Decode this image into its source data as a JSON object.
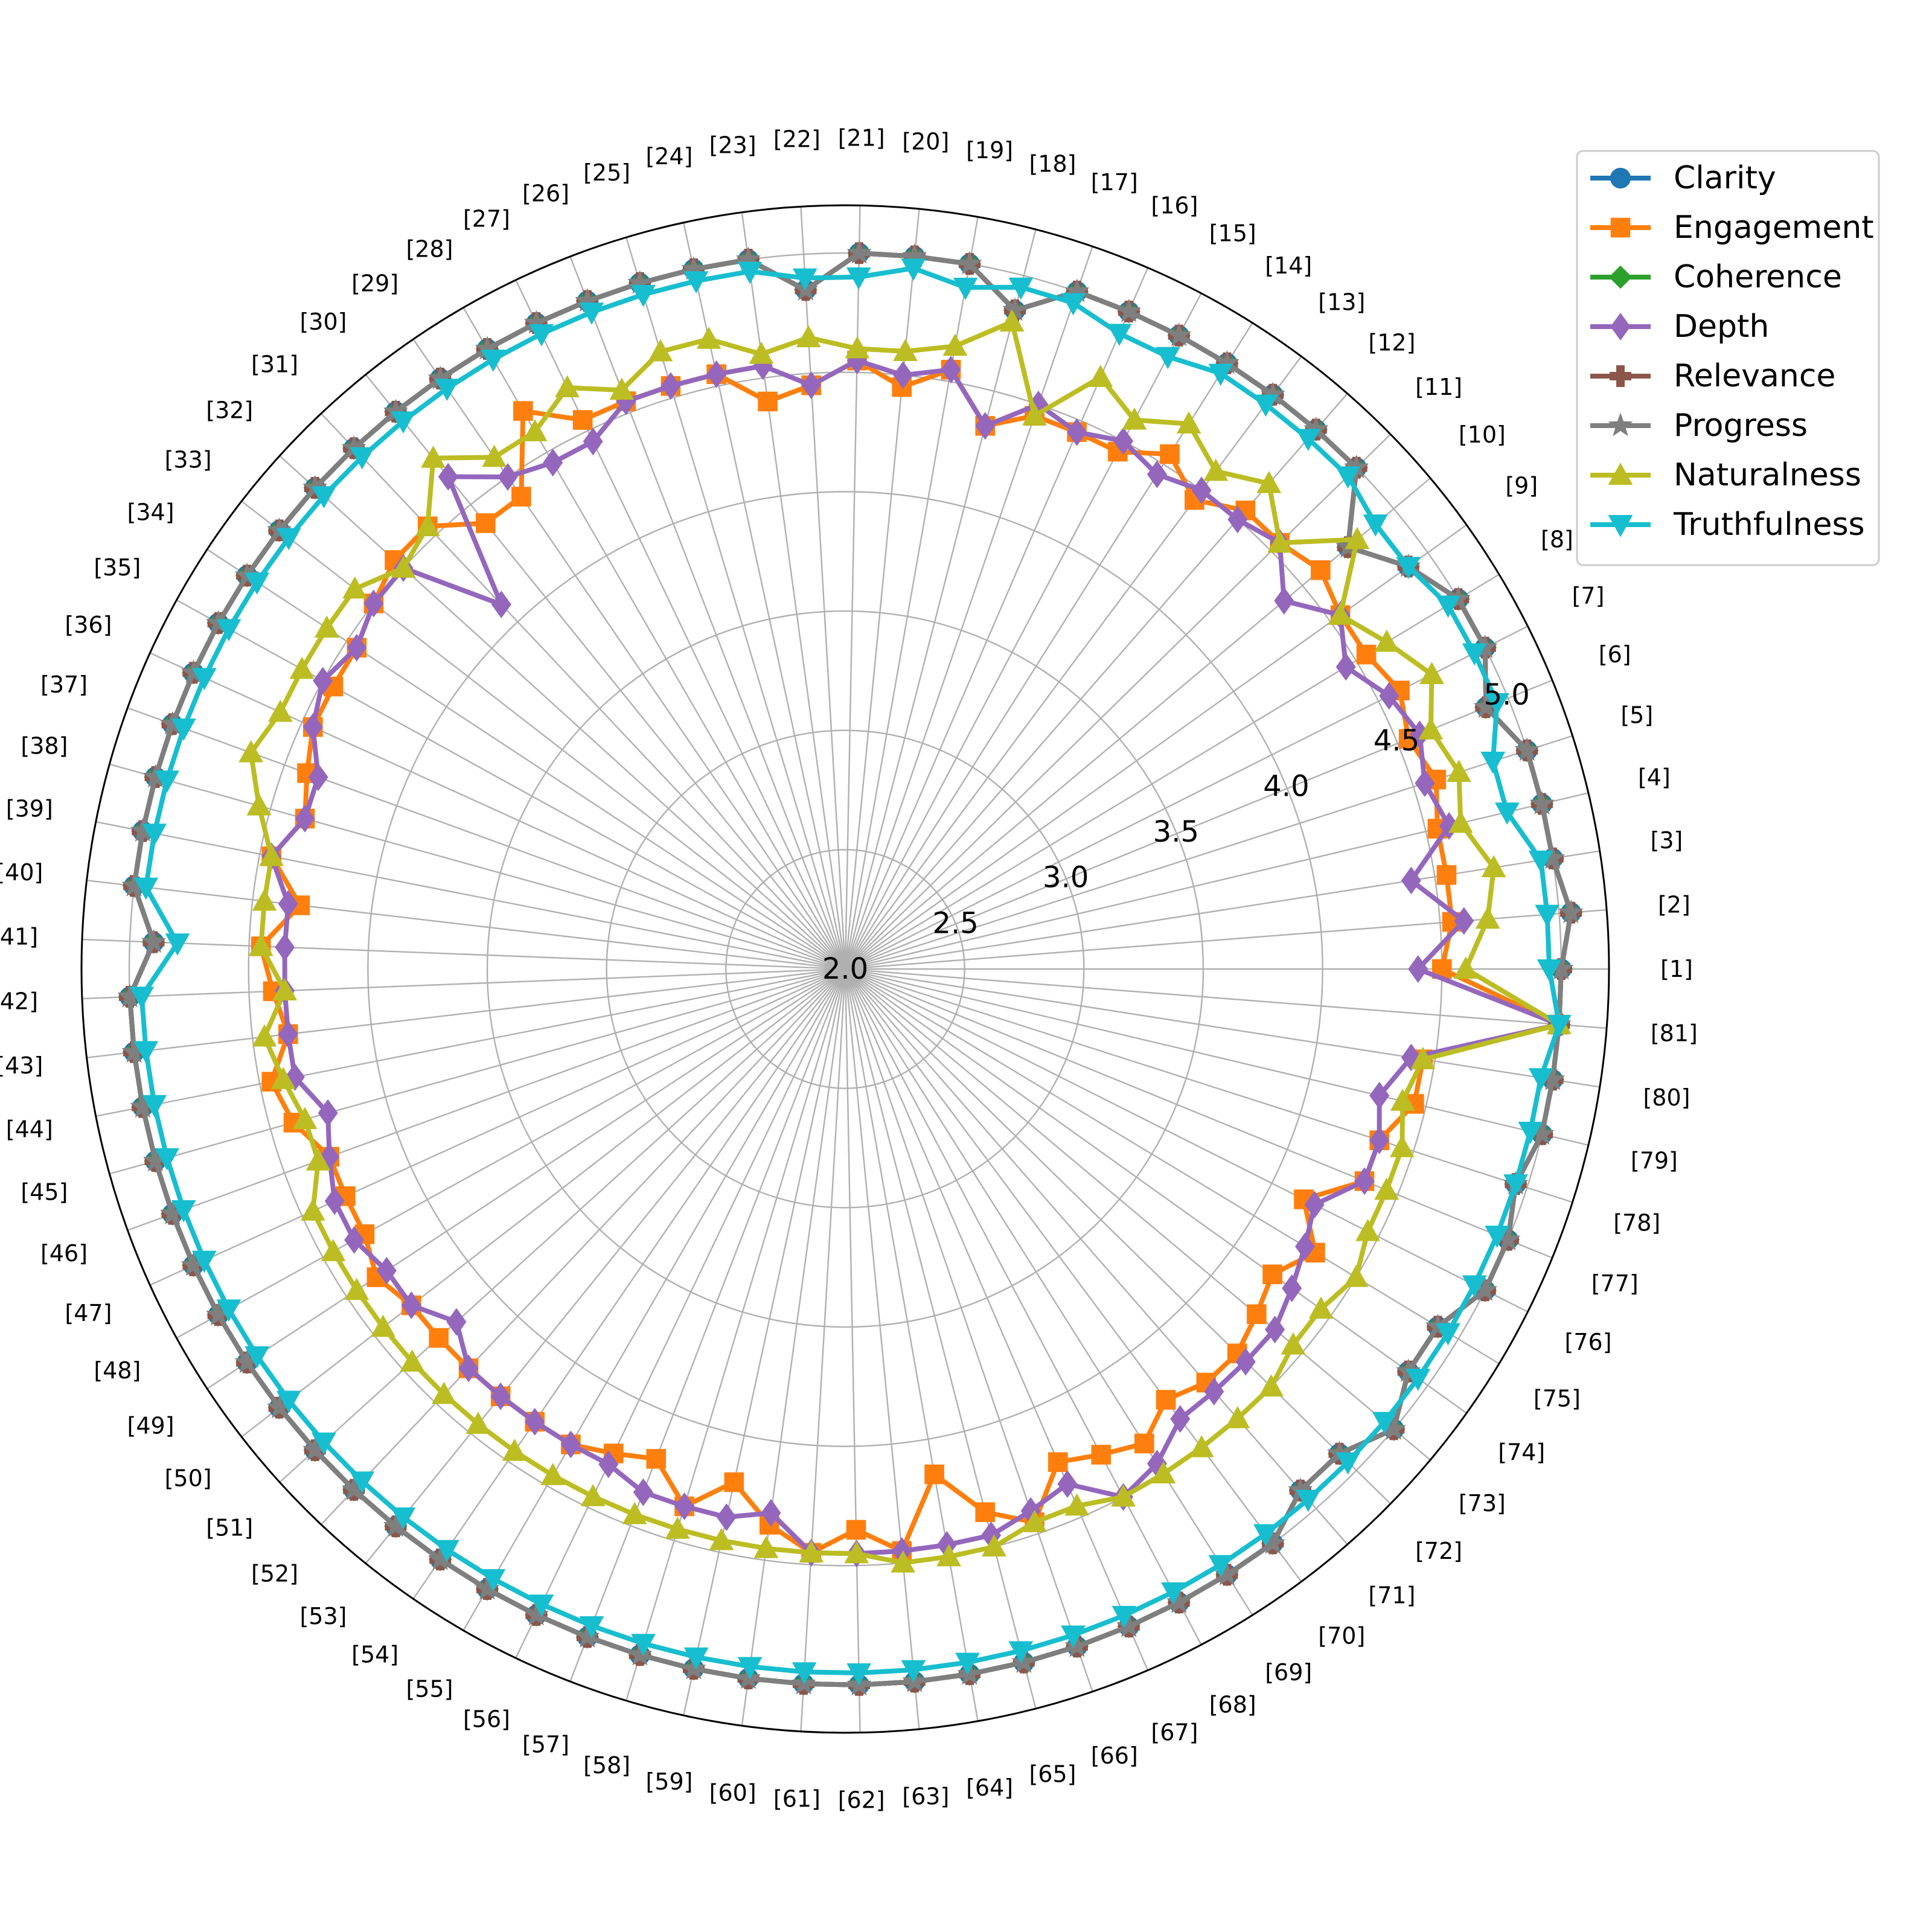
{
  "chart_data": {
    "type": "radar",
    "categories": [
      "[1]",
      "[2]",
      "[3]",
      "[4]",
      "[5]",
      "[6]",
      "[7]",
      "[8]",
      "[9]",
      "[10]",
      "[11]",
      "[12]",
      "[13]",
      "[14]",
      "[15]",
      "[16]",
      "[17]",
      "[18]",
      "[19]",
      "[20]",
      "[21]",
      "[22]",
      "[23]",
      "[24]",
      "[25]",
      "[26]",
      "[27]",
      "[28]",
      "[29]",
      "[30]",
      "[31]",
      "[32]",
      "[33]",
      "[34]",
      "[35]",
      "[36]",
      "[37]",
      "[38]",
      "[39]",
      "[40]",
      "[41]",
      "[42]",
      "[43]",
      "[44]",
      "[45]",
      "[46]",
      "[47]",
      "[48]",
      "[49]",
      "[50]",
      "[51]",
      "[52]",
      "[53]",
      "[54]",
      "[55]",
      "[56]",
      "[57]",
      "[58]",
      "[59]",
      "[60]",
      "[61]",
      "[62]",
      "[63]",
      "[64]",
      "[65]",
      "[66]",
      "[67]",
      "[68]",
      "[69]",
      "[70]",
      "[71]",
      "[72]",
      "[73]",
      "[74]",
      "[75]",
      "[76]",
      "[77]",
      "[78]",
      "[79]",
      "[80]",
      "[81]"
    ],
    "rlim": [
      2.0,
      5.2
    ],
    "rticks": [
      2.0,
      2.5,
      3.0,
      3.5,
      4.0,
      4.5,
      5.0
    ],
    "rtick_labels": [
      "2.0",
      "2.5",
      "3.0",
      "3.5",
      "4.0",
      "4.5",
      "5.0"
    ],
    "grid": true,
    "legend_position": "top-right",
    "series": [
      {
        "name": "Clarity",
        "color": "#1f77b4",
        "marker": "circle",
        "values": [
          5.0,
          5.05,
          5.0,
          5.0,
          5.0,
          4.9,
          5.0,
          5.0,
          4.9,
          4.75,
          5.0,
          5.0,
          5.0,
          5.0,
          5.0,
          5.0,
          5.0,
          4.85,
          5.0,
          5.0,
          5.0,
          4.85,
          5.0,
          5.0,
          5.0,
          5.0,
          5.0,
          5.0,
          5.0,
          5.0,
          5.0,
          5.0,
          5.0,
          5.0,
          5.0,
          5.0,
          5.0,
          5.0,
          5.0,
          5.0,
          4.9,
          5.0,
          5.0,
          5.0,
          5.0,
          5.0,
          5.0,
          5.0,
          5.0,
          5.0,
          5.0,
          5.0,
          5.0,
          5.0,
          5.0,
          5.0,
          5.0,
          5.0,
          5.0,
          5.0,
          5.0,
          5.0,
          5.0,
          5.0,
          5.0,
          5.0,
          5.0,
          5.0,
          5.0,
          5.0,
          4.9,
          4.9,
          5.0,
          4.9,
          4.9,
          5.0,
          5.0,
          4.95,
          5.0,
          5.0,
          5.0
        ]
      },
      {
        "name": "Engagement",
        "color": "#ff7f0e",
        "marker": "square",
        "values": [
          4.5,
          4.55,
          4.55,
          4.55,
          4.6,
          4.55,
          4.6,
          4.55,
          4.55,
          4.6,
          4.55,
          4.55,
          4.45,
          4.55,
          4.45,
          4.45,
          4.45,
          4.35,
          4.55,
          4.45,
          4.55,
          4.45,
          4.4,
          4.55,
          4.55,
          4.55,
          4.55,
          4.7,
          4.4,
          4.4,
          4.55,
          4.55,
          4.5,
          4.45,
          4.45,
          4.45,
          4.4,
          4.35,
          4.45,
          4.3,
          4.45,
          4.4,
          4.35,
          4.45,
          4.4,
          4.3,
          4.3,
          4.3,
          4.35,
          4.3,
          4.3,
          4.3,
          4.3,
          4.3,
          4.3,
          4.25,
          4.2,
          4.35,
          4.2,
          4.35,
          4.45,
          4.35,
          4.45,
          4.15,
          4.35,
          4.45,
          4.25,
          4.3,
          4.35,
          4.25,
          4.3,
          4.3,
          4.25,
          4.2,
          4.3,
          4.15,
          4.35,
          4.35,
          4.45,
          4.45,
          5.0
        ]
      },
      {
        "name": "Coherence",
        "color": "#2ca02c",
        "marker": "diamond",
        "values": [
          5.0,
          5.05,
          5.0,
          5.0,
          5.0,
          4.9,
          5.0,
          5.0,
          4.9,
          4.75,
          5.0,
          5.0,
          5.0,
          5.0,
          5.0,
          5.0,
          5.0,
          4.85,
          5.0,
          5.0,
          5.0,
          4.85,
          5.0,
          5.0,
          5.0,
          5.0,
          5.0,
          5.0,
          5.0,
          5.0,
          5.0,
          5.0,
          5.0,
          5.0,
          5.0,
          5.0,
          5.0,
          5.0,
          5.0,
          5.0,
          4.9,
          5.0,
          5.0,
          5.0,
          5.0,
          5.0,
          5.0,
          5.0,
          5.0,
          5.0,
          5.0,
          5.0,
          5.0,
          5.0,
          5.0,
          5.0,
          5.0,
          5.0,
          5.0,
          5.0,
          5.0,
          5.0,
          5.0,
          5.0,
          5.0,
          5.0,
          5.0,
          5.0,
          5.0,
          5.0,
          4.9,
          4.9,
          5.0,
          4.9,
          4.9,
          5.0,
          5.0,
          4.95,
          5.0,
          5.0,
          5.0
        ]
      },
      {
        "name": "Depth",
        "color": "#9467bd",
        "marker": "thin_diamond",
        "values": [
          4.4,
          4.6,
          4.4,
          4.6,
          4.55,
          4.6,
          4.55,
          4.45,
          4.55,
          4.4,
          4.55,
          4.5,
          4.5,
          4.45,
          4.5,
          4.45,
          4.5,
          4.35,
          4.55,
          4.5,
          4.55,
          4.45,
          4.55,
          4.55,
          4.55,
          4.55,
          4.45,
          4.45,
          4.5,
          4.65,
          4.1,
          4.5,
          4.5,
          4.45,
          4.5,
          4.45,
          4.35,
          4.35,
          4.45,
          4.35,
          4.35,
          4.35,
          4.35,
          4.35,
          4.25,
          4.3,
          4.35,
          4.35,
          4.3,
          4.3,
          4.2,
          4.3,
          4.3,
          4.3,
          4.3,
          4.3,
          4.35,
          4.35,
          4.35,
          4.3,
          4.45,
          4.45,
          4.45,
          4.45,
          4.45,
          4.4,
          4.35,
          4.5,
          4.45,
          4.35,
          4.35,
          4.35,
          4.35,
          4.3,
          4.25,
          4.2,
          4.35,
          4.35,
          4.3,
          4.4,
          5.0
        ]
      },
      {
        "name": "Relevance",
        "color": "#8c564b",
        "marker": "plus",
        "values": [
          5.0,
          5.05,
          5.0,
          5.0,
          5.0,
          4.9,
          5.0,
          5.0,
          4.9,
          4.75,
          5.0,
          5.0,
          5.0,
          5.0,
          5.0,
          5.0,
          5.0,
          4.85,
          5.0,
          5.0,
          5.0,
          4.85,
          5.0,
          5.0,
          5.0,
          5.0,
          5.0,
          5.0,
          5.0,
          5.0,
          5.0,
          5.0,
          5.0,
          5.0,
          5.0,
          5.0,
          5.0,
          5.0,
          5.0,
          5.0,
          4.9,
          5.0,
          5.0,
          5.0,
          5.0,
          5.0,
          5.0,
          5.0,
          5.0,
          5.0,
          5.0,
          5.0,
          5.0,
          5.0,
          5.0,
          5.0,
          5.0,
          5.0,
          5.0,
          5.0,
          5.0,
          5.0,
          5.0,
          5.0,
          5.0,
          5.0,
          5.0,
          5.0,
          5.0,
          5.0,
          4.9,
          4.9,
          5.0,
          4.9,
          4.9,
          5.0,
          5.0,
          4.95,
          5.0,
          5.0,
          5.0
        ]
      },
      {
        "name": "Progress",
        "color": "#7f7f7f",
        "marker": "star",
        "values": [
          5.0,
          5.05,
          5.0,
          5.0,
          5.0,
          4.9,
          5.0,
          5.0,
          4.9,
          4.75,
          5.0,
          5.0,
          5.0,
          5.0,
          5.0,
          5.0,
          5.0,
          4.85,
          5.0,
          5.0,
          5.0,
          4.85,
          5.0,
          5.0,
          5.0,
          5.0,
          5.0,
          5.0,
          5.0,
          5.0,
          5.0,
          5.0,
          5.0,
          5.0,
          5.0,
          5.0,
          5.0,
          5.0,
          5.0,
          5.0,
          4.9,
          5.0,
          5.0,
          5.0,
          5.0,
          5.0,
          5.0,
          5.0,
          5.0,
          5.0,
          5.0,
          5.0,
          5.0,
          5.0,
          5.0,
          5.0,
          5.0,
          5.0,
          5.0,
          5.0,
          5.0,
          5.0,
          5.0,
          5.0,
          5.0,
          5.0,
          5.0,
          5.0,
          5.0,
          5.0,
          4.9,
          4.9,
          5.0,
          4.9,
          4.9,
          5.0,
          5.0,
          4.95,
          5.0,
          5.0,
          5.0
        ]
      },
      {
        "name": "Naturalness",
        "color": "#bcbd22",
        "marker": "triangle_up",
        "values": [
          4.6,
          4.7,
          4.75,
          4.65,
          4.7,
          4.65,
          4.75,
          4.65,
          4.55,
          4.8,
          4.55,
          4.7,
          4.6,
          4.7,
          4.6,
          4.7,
          4.45,
          4.8,
          4.65,
          4.6,
          4.6,
          4.65,
          4.6,
          4.7,
          4.7,
          4.6,
          4.7,
          4.6,
          4.6,
          4.75,
          4.55,
          4.5,
          4.6,
          4.6,
          4.6,
          4.6,
          4.65,
          4.55,
          4.45,
          4.45,
          4.45,
          4.35,
          4.45,
          4.4,
          4.35,
          4.35,
          4.45,
          4.45,
          4.45,
          4.45,
          4.45,
          4.45,
          4.45,
          4.45,
          4.45,
          4.45,
          4.45,
          4.45,
          4.45,
          4.45,
          4.45,
          4.45,
          4.5,
          4.5,
          4.5,
          4.45,
          4.45,
          4.5,
          4.5,
          4.5,
          4.5,
          4.5,
          4.45,
          4.45,
          4.5,
          4.45,
          4.45,
          4.45,
          4.4,
          4.45,
          5.0
        ]
      },
      {
        "name": "Truthfulness",
        "color": "#17becf",
        "marker": "triangle_down",
        "values": [
          4.95,
          4.95,
          4.95,
          4.85,
          4.85,
          4.95,
          4.95,
          4.95,
          4.9,
          4.9,
          4.95,
          4.95,
          4.95,
          4.95,
          4.9,
          4.9,
          4.95,
          4.95,
          4.9,
          4.95,
          4.9,
          4.9,
          4.95,
          4.95,
          4.95,
          4.95,
          4.95,
          4.95,
          4.95,
          4.95,
          4.95,
          4.95,
          4.95,
          4.95,
          4.95,
          4.95,
          4.95,
          4.95,
          4.95,
          4.95,
          4.8,
          4.95,
          4.95,
          4.95,
          4.95,
          4.95,
          4.95,
          4.95,
          4.95,
          4.95,
          4.95,
          4.95,
          4.95,
          4.95,
          4.95,
          4.95,
          4.95,
          4.95,
          4.95,
          4.95,
          4.95,
          4.95,
          4.95,
          4.95,
          4.95,
          4.95,
          4.95,
          4.95,
          4.95,
          4.95,
          4.95,
          4.95,
          4.95,
          4.95,
          4.95,
          4.95,
          4.95,
          4.95,
          4.95,
          4.95,
          5.0
        ]
      }
    ]
  }
}
